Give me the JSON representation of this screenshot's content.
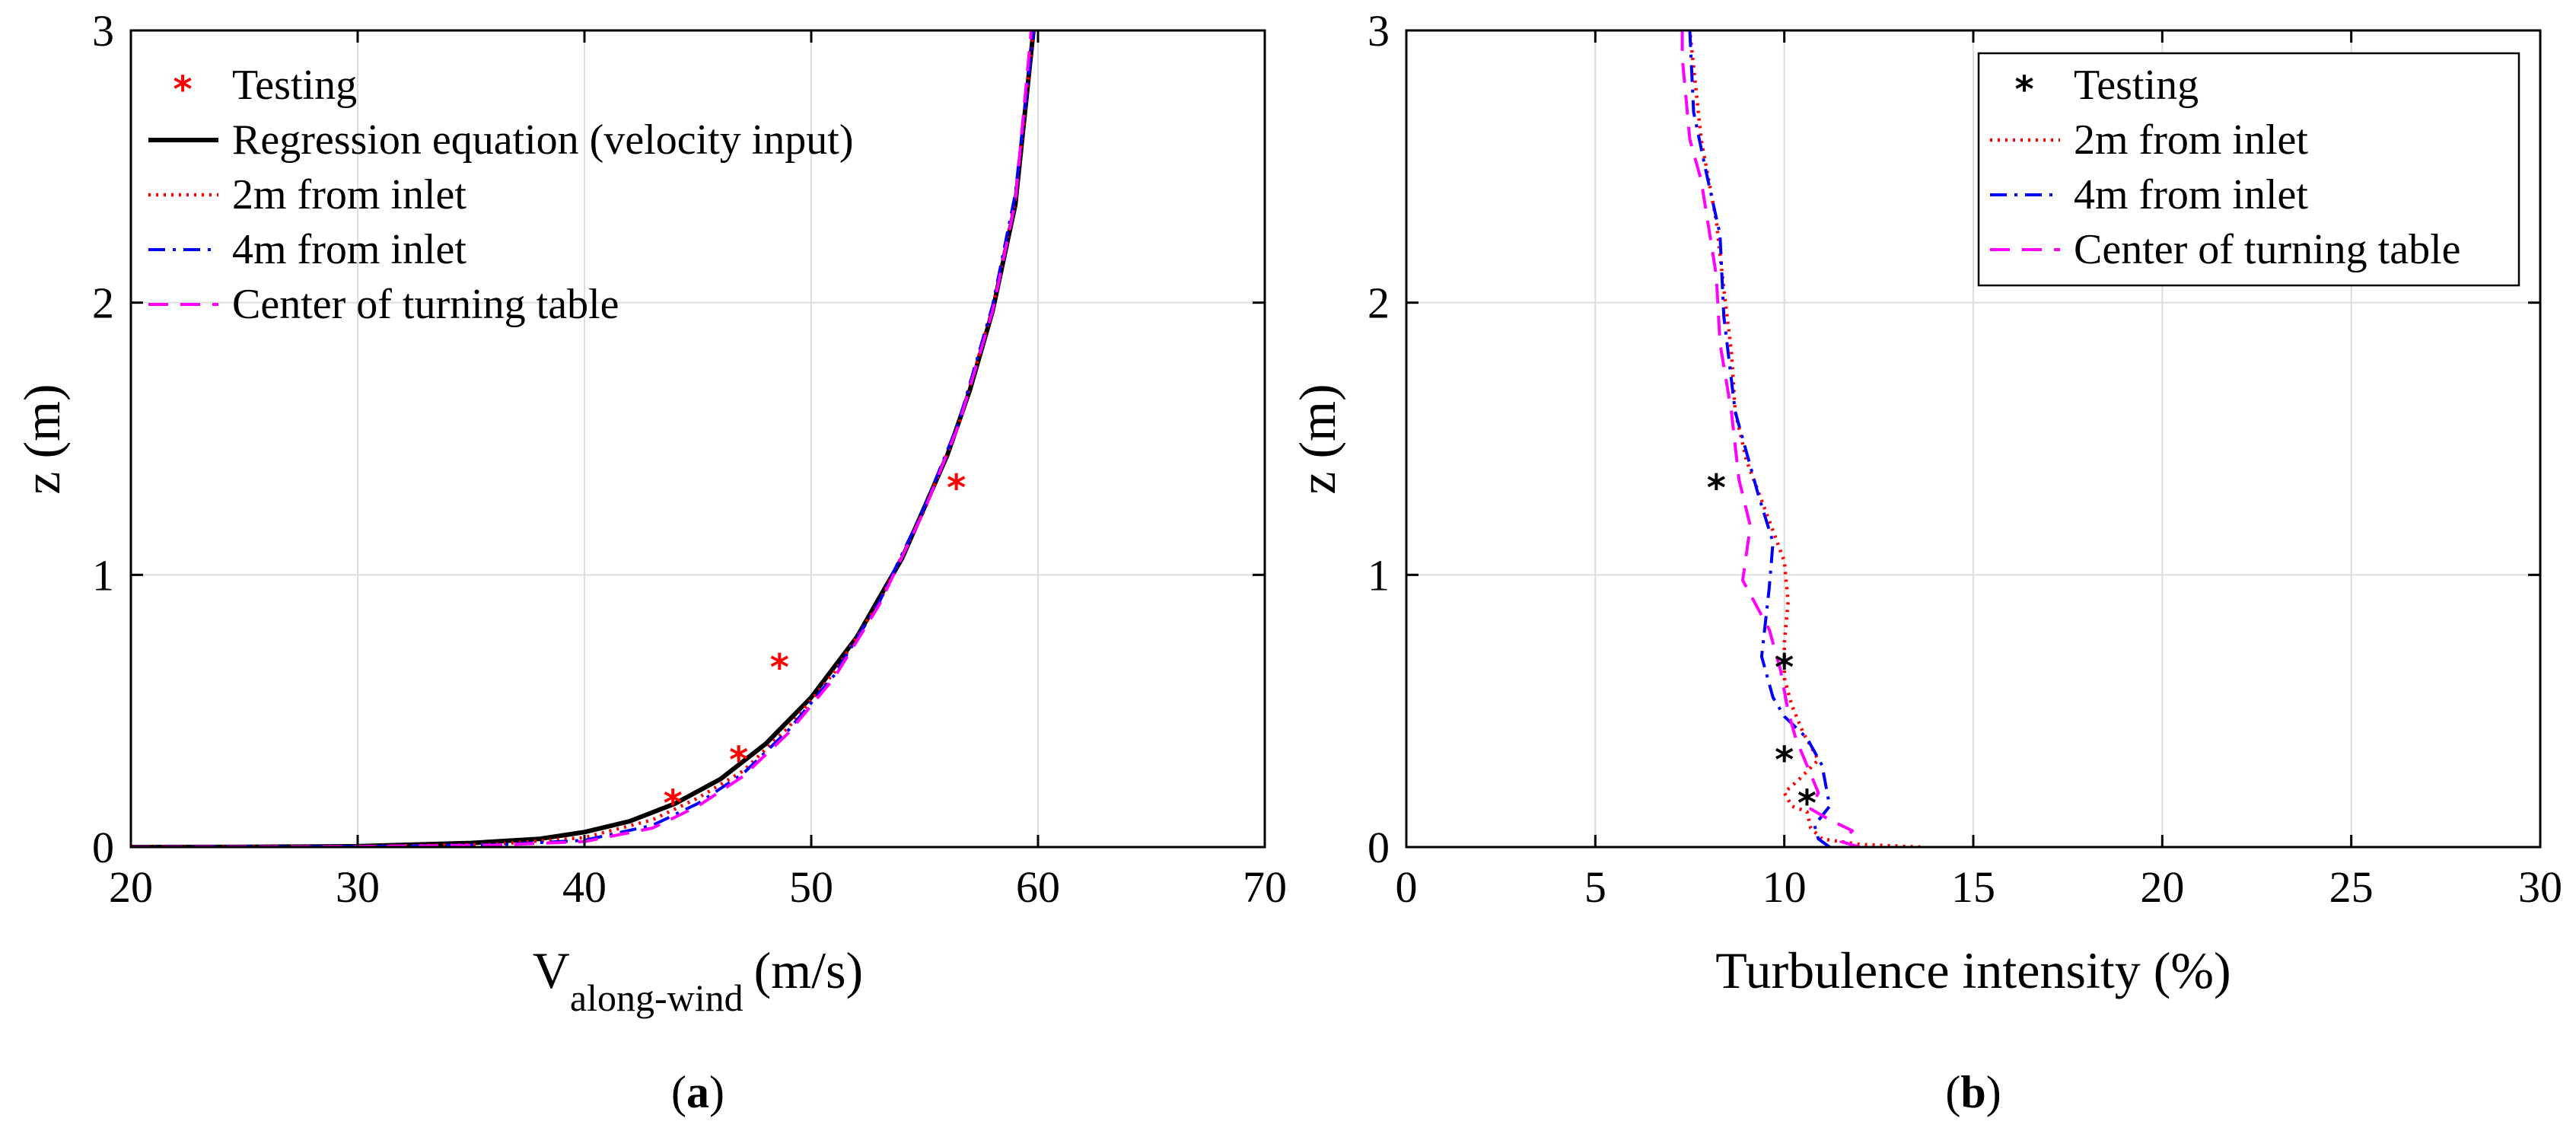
{
  "chart_data": [
    {
      "type": "line",
      "panel": "a",
      "panel_label": "a",
      "xlabel": "V",
      "xlabel_sub": "along-wind",
      "xlabel_units": "(m/s)",
      "ylabel": "z (m)",
      "xlim": [
        20,
        70
      ],
      "ylim": [
        0,
        3
      ],
      "xticks": [
        20,
        30,
        40,
        50,
        60,
        70
      ],
      "yticks": [
        0,
        1,
        2,
        3
      ],
      "grid": true,
      "legend_position": "top-left",
      "series": [
        {
          "name": "Testing",
          "style": "markers",
          "color": "#ff0000",
          "points": [
            [
              43.9,
              0.17
            ],
            [
              46.8,
              0.33
            ],
            [
              48.6,
              0.67
            ],
            [
              56.4,
              1.33
            ]
          ]
        },
        {
          "name": "Regression equation (velocity input)",
          "style": "solid",
          "color": "#000000",
          "points": [
            [
              20.0,
              0.0
            ],
            [
              25.0,
              0.0005
            ],
            [
              30.0,
              0.003
            ],
            [
              35.0,
              0.015
            ],
            [
              38.0,
              0.03
            ],
            [
              40.0,
              0.055
            ],
            [
              42.0,
              0.095
            ],
            [
              44.0,
              0.16
            ],
            [
              46.0,
              0.25
            ],
            [
              48.0,
              0.38
            ],
            [
              50.0,
              0.55
            ],
            [
              52.0,
              0.77
            ],
            [
              54.0,
              1.06
            ],
            [
              56.0,
              1.44
            ],
            [
              57.0,
              1.68
            ],
            [
              58.0,
              1.97
            ],
            [
              59.0,
              2.36
            ],
            [
              59.8,
              3.0
            ]
          ]
        },
        {
          "name": "2m from inlet",
          "style": "dotted",
          "color": "#ff0000",
          "points": [
            [
              20.0,
              0.0
            ],
            [
              30.0,
              0.002
            ],
            [
              36.0,
              0.01
            ],
            [
              40.0,
              0.035
            ],
            [
              43.0,
              0.1
            ],
            [
              45.0,
              0.18
            ],
            [
              47.0,
              0.28
            ],
            [
              49.0,
              0.44
            ],
            [
              51.0,
              0.64
            ],
            [
              53.0,
              0.9
            ],
            [
              55.0,
              1.24
            ],
            [
              56.5,
              1.55
            ],
            [
              58.0,
              1.98
            ],
            [
              59.0,
              2.38
            ],
            [
              59.8,
              3.0
            ]
          ]
        },
        {
          "name": "4m from inlet",
          "style": "dashdot",
          "color": "#0000ff",
          "points": [
            [
              20.0,
              0.0
            ],
            [
              30.0,
              0.002
            ],
            [
              36.0,
              0.008
            ],
            [
              40.0,
              0.025
            ],
            [
              43.0,
              0.08
            ],
            [
              45.0,
              0.16
            ],
            [
              47.0,
              0.27
            ],
            [
              49.0,
              0.43
            ],
            [
              51.0,
              0.63
            ],
            [
              53.0,
              0.9
            ],
            [
              55.0,
              1.25
            ],
            [
              56.5,
              1.56
            ],
            [
              58.0,
              1.99
            ],
            [
              59.0,
              2.4
            ],
            [
              59.8,
              3.0
            ]
          ]
        },
        {
          "name": "Center of turning table",
          "style": "dashed",
          "color": "#ff00ff",
          "points": [
            [
              20.0,
              0.0
            ],
            [
              30.0,
              0.002
            ],
            [
              36.0,
              0.007
            ],
            [
              40.0,
              0.02
            ],
            [
              43.0,
              0.07
            ],
            [
              45.0,
              0.15
            ],
            [
              47.0,
              0.26
            ],
            [
              49.0,
              0.42
            ],
            [
              51.0,
              0.62
            ],
            [
              53.0,
              0.89
            ],
            [
              55.0,
              1.24
            ],
            [
              56.5,
              1.55
            ],
            [
              58.0,
              1.97
            ],
            [
              59.0,
              2.37
            ],
            [
              59.7,
              3.0
            ]
          ]
        }
      ]
    },
    {
      "type": "line",
      "panel": "b",
      "panel_label": "b",
      "xlabel": "Turbulence intensity (%)",
      "ylabel": "z (m)",
      "xlim": [
        0,
        30
      ],
      "ylim": [
        0,
        3
      ],
      "xticks": [
        0,
        5,
        10,
        15,
        20,
        25,
        30
      ],
      "yticks": [
        0,
        1,
        2,
        3
      ],
      "grid": true,
      "legend_position": "top-right",
      "series": [
        {
          "name": "Testing",
          "style": "markers",
          "color": "#000000",
          "points": [
            [
              10.6,
              0.17
            ],
            [
              10.0,
              0.33
            ],
            [
              10.0,
              0.67
            ],
            [
              8.2,
              1.33
            ]
          ]
        },
        {
          "name": "2m from inlet",
          "style": "dotted",
          "color": "#ff0000",
          "points": [
            [
              13.6,
              0.0
            ],
            [
              12.0,
              0.01
            ],
            [
              11.0,
              0.03
            ],
            [
              10.7,
              0.07
            ],
            [
              10.6,
              0.13
            ],
            [
              10.2,
              0.15
            ],
            [
              10.0,
              0.2
            ],
            [
              10.4,
              0.25
            ],
            [
              10.9,
              0.32
            ],
            [
              10.5,
              0.42
            ],
            [
              10.2,
              0.52
            ],
            [
              10.0,
              0.62
            ],
            [
              10.0,
              0.75
            ],
            [
              10.1,
              0.9
            ],
            [
              10.0,
              1.05
            ],
            [
              9.6,
              1.2
            ],
            [
              9.0,
              1.42
            ],
            [
              8.7,
              1.6
            ],
            [
              8.6,
              1.82
            ],
            [
              8.4,
              2.05
            ],
            [
              8.2,
              2.3
            ],
            [
              7.8,
              2.6
            ],
            [
              7.5,
              3.0
            ]
          ]
        },
        {
          "name": "4m from inlet",
          "style": "dashdot",
          "color": "#0000ff",
          "points": [
            [
              11.2,
              0.0
            ],
            [
              10.9,
              0.03
            ],
            [
              10.8,
              0.08
            ],
            [
              11.2,
              0.15
            ],
            [
              11.0,
              0.3
            ],
            [
              10.6,
              0.4
            ],
            [
              10.0,
              0.48
            ],
            [
              9.7,
              0.55
            ],
            [
              9.4,
              0.7
            ],
            [
              9.6,
              0.95
            ],
            [
              9.7,
              1.12
            ],
            [
              9.3,
              1.3
            ],
            [
              8.7,
              1.6
            ],
            [
              8.4,
              1.95
            ],
            [
              8.3,
              2.25
            ],
            [
              7.9,
              2.5
            ],
            [
              7.6,
              2.7
            ],
            [
              7.5,
              3.0
            ]
          ]
        },
        {
          "name": "Center of turning table",
          "style": "dashed",
          "color": "#ff00ff",
          "points": [
            [
              12.0,
              0.0
            ],
            [
              11.5,
              0.02
            ],
            [
              11.8,
              0.06
            ],
            [
              11.2,
              0.1
            ],
            [
              10.7,
              0.14
            ],
            [
              10.9,
              0.2
            ],
            [
              10.6,
              0.3
            ],
            [
              10.3,
              0.4
            ],
            [
              10.1,
              0.5
            ],
            [
              9.9,
              0.65
            ],
            [
              9.6,
              0.8
            ],
            [
              8.9,
              0.98
            ],
            [
              9.1,
              1.18
            ],
            [
              8.8,
              1.35
            ],
            [
              8.6,
              1.6
            ],
            [
              8.3,
              1.85
            ],
            [
              8.2,
              2.1
            ],
            [
              7.8,
              2.45
            ],
            [
              7.5,
              2.6
            ],
            [
              7.3,
              2.9
            ],
            [
              7.3,
              3.0
            ]
          ]
        }
      ]
    }
  ]
}
